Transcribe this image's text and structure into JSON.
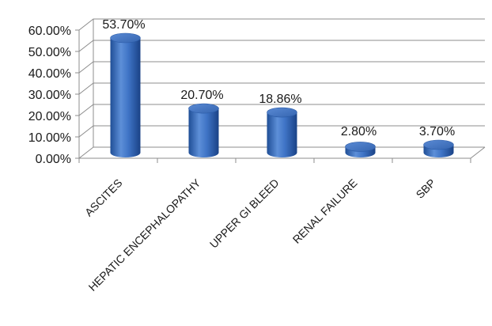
{
  "chart_data": {
    "type": "bar",
    "style": "3d-cylinder",
    "categories": [
      "ASCITES",
      "HEPATIC ENCEPHALOPATHY",
      "UPPER GI BLEED",
      "RENAL FAILURE",
      "SBP"
    ],
    "values": [
      53.7,
      20.7,
      18.86,
      2.8,
      3.7
    ],
    "data_labels": [
      "53.70%",
      "20.70%",
      "18.86%",
      "2.80%",
      "3.70%"
    ],
    "y_ticks": [
      0,
      10,
      20,
      30,
      40,
      50,
      60
    ],
    "y_tick_labels": [
      "0.00%",
      "10.00%",
      "20.00%",
      "30.00%",
      "40.00%",
      "50.00%",
      "60.00%"
    ],
    "ylim": [
      0,
      60
    ],
    "grid": true,
    "legend": "none",
    "title": "",
    "xlabel": "",
    "ylabel": "",
    "bar_color": "#3f74c6",
    "bar_color_dark": "#1f4e96",
    "bar_color_light": "#6f9ee0"
  }
}
